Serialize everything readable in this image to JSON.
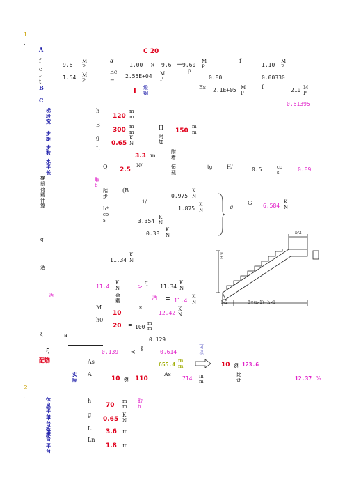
{
  "section1": {
    "num": "1",
    "dot": ".",
    "row_a": "A",
    "row_b": "B",
    "row_c": "C",
    "letters": [
      "f",
      "c",
      "f",
      "t"
    ],
    "fc_val": "9.6",
    "ft_val": "1.54",
    "unit_mp1": "MP",
    "unit_mp2": "MP",
    "alpha": "α",
    "ec_label": "Ec",
    "grade": "C 20",
    "v100": "1.00",
    "times": "×",
    "v96": "9.6",
    "eq": "=",
    "v960": "9.60",
    "mp_a": "MP",
    "ec_val": "2.55E+04",
    "mp_b": "MP",
    "rho": "ρ",
    "v080": "0.80",
    "f1": "f",
    "v110": "1.10",
    "mp_c": "MP",
    "v00033": "0.00330",
    "grade_i": "I",
    "grade_txt": "级钢",
    "es_label": "Es",
    "es_val": "2.1E+05",
    "mp_d": "MP",
    "fy_label": "f",
    "v210": "210",
    "mp_e": "MP",
    "xi_b": "0.61395"
  },
  "geometry": {
    "labels_left": [
      "梯段宽",
      "步距",
      "步数",
      "水平长"
    ],
    "h_label": "h",
    "b_label": "B",
    "g_label": "g",
    "l_label": "L",
    "h_val": "120",
    "b_val": "300",
    "H_label": "H",
    "H_val": "150",
    "mm1": "mm",
    "mm2": "mm",
    "mm3": "mm",
    "kn1": "KN",
    "g_val": "0.65",
    "fall_text": "附加",
    "l_val": "3.3",
    "l_unit": "m",
    "step_text": "附着",
    "q_label": "Q",
    "q_val": "2.5",
    "q_unit": "N/",
    "sub_text": "恒载",
    "tg_label": "tg",
    "h_slash": "H/",
    "half": "0.5",
    "cos_label": "cos",
    "cos_val": "0.89"
  },
  "load": {
    "label_left": "梯段荷载计算",
    "take_b": "取b",
    "step": "踏步",
    "paren": "(B",
    "v0975": "0.975",
    "v1875": "1.875",
    "frac1": "1/",
    "frac2": "h*cos",
    "v3354": "3.354",
    "v038": "0.38",
    "kn_units": [
      "KN",
      "KN",
      "KN",
      "KN"
    ],
    "g_sym": "g",
    "G_label": "G",
    "sum_val": "6.584",
    "sum_unit": "KN",
    "q_val": "11.34",
    "q_unit": "KN"
  },
  "moment": {
    "label_q": "q",
    "label_live": "活",
    "v114": "11.4",
    "kn": "KN",
    "gt": ">",
    "q1": "q",
    "v1134b": "11.34",
    "kn2": "KN",
    "load_text": "荷载",
    "sub": "活",
    "eq": "=",
    "v114b": "11.4",
    "kn3": "KN",
    "v10": "10",
    "star": "*",
    "v1242": "12.42",
    "kn4": "KN",
    "h0": "h0",
    "v20": "20",
    "v100": "100",
    "mm": "mm",
    "alpha_s": "a",
    "v0129": "0.129",
    "xi": "ξ",
    "v0139": "0.139",
    "lt": "<",
    "xib": "ξ",
    "v0614": "0.614",
    "ok": "可以",
    "as_label": "As",
    "as_val": "655.4",
    "as_unit": "mm",
    "rebar": "10",
    "at": "@",
    "spacing": "123.6",
    "actual": "实际",
    "bar2": "10",
    "at2": "@",
    "sp2": "110",
    "as2": "As",
    "as2_val": "714",
    "mm2": "mm",
    "ratio_txt": "比计",
    "ratio": "12.37",
    "pct": "%"
  },
  "section2": {
    "num": "2",
    "dot": ".",
    "labels_left": [
      "休息平台",
      "平台板厚",
      "平台",
      "平台"
    ],
    "h_label": "h",
    "g_label": "g",
    "l_label": "L",
    "ln_label": "Ln",
    "h_val": "70",
    "g_val": "0.65",
    "l_val": "3.6",
    "ln_val": "1.8",
    "mm": "mm",
    "take_b": "取b",
    "kn": "KN",
    "m1": "m",
    "m2": "m"
  },
  "diagram": {
    "label_a": "b/2",
    "label_b": "b/2",
    "label_c": "8×(n-1)=h×l",
    "label_d": "hH"
  }
}
